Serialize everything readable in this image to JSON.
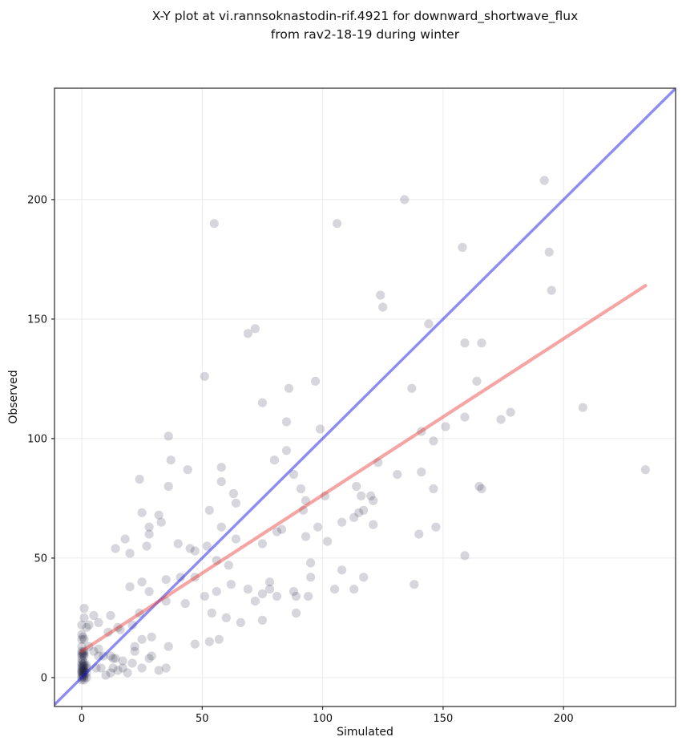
{
  "title": {
    "line1": "X-Y plot at vi.rannsoknastodin-rif.4921 for downward_shortwave_flux",
    "line2": "from rav2-18-19 during winter"
  },
  "chart_data": {
    "type": "scatter",
    "xlabel": "Simulated",
    "ylabel": "Observed",
    "x_ticks": [
      0,
      50,
      100,
      150,
      200
    ],
    "y_ticks": [
      0,
      50,
      100,
      150,
      200
    ],
    "xlim": [
      -11.3,
      246.5
    ],
    "ylim": [
      -12.1,
      246.6
    ],
    "grid": true,
    "grid_color": "#ebebeb",
    "spine_color": "#262626",
    "identity_line": {
      "slope": 1,
      "intercept": 0,
      "color": "#1919e6",
      "opacity": 0.5,
      "width": 3.4
    },
    "regression_line": {
      "x1": 0,
      "y1": 11,
      "x2": 234,
      "y2": 164,
      "color": "#e83732",
      "opacity": 0.45,
      "width": 4.2
    },
    "point_style": {
      "radius": 5.6,
      "color": "#1e1e3c",
      "opacity": 0.18
    },
    "points": [
      [
        55,
        190
      ],
      [
        106,
        190
      ],
      [
        134,
        200
      ],
      [
        158,
        180
      ],
      [
        124,
        160
      ],
      [
        125,
        155
      ],
      [
        192,
        208
      ],
      [
        194,
        178
      ],
      [
        195,
        162
      ],
      [
        69,
        144
      ],
      [
        72,
        146
      ],
      [
        51,
        126
      ],
      [
        75,
        115
      ],
      [
        36,
        101
      ],
      [
        37,
        91
      ],
      [
        44,
        87
      ],
      [
        24,
        83
      ],
      [
        36,
        80
      ],
      [
        58,
        88
      ],
      [
        58,
        82
      ],
      [
        63,
        77
      ],
      [
        144,
        148
      ],
      [
        159,
        140
      ],
      [
        166,
        140
      ],
      [
        164,
        124
      ],
      [
        178,
        111
      ],
      [
        174,
        108
      ],
      [
        208,
        113
      ],
      [
        234,
        87
      ],
      [
        165,
        80
      ],
      [
        166,
        79
      ],
      [
        97,
        124
      ],
      [
        86,
        121
      ],
      [
        137,
        121
      ],
      [
        85,
        107
      ],
      [
        99,
        104
      ],
      [
        159,
        109
      ],
      [
        151,
        105
      ],
      [
        141,
        103
      ],
      [
        146,
        99
      ],
      [
        85,
        95
      ],
      [
        80,
        91
      ],
      [
        123,
        90
      ],
      [
        88,
        85
      ],
      [
        131,
        85
      ],
      [
        141,
        86
      ],
      [
        91,
        79
      ],
      [
        114,
        80
      ],
      [
        146,
        79
      ],
      [
        101,
        76
      ],
      [
        116,
        76
      ],
      [
        120,
        76
      ],
      [
        121,
        74
      ],
      [
        93,
        74
      ],
      [
        92,
        70
      ],
      [
        117,
        70
      ],
      [
        81,
        61
      ],
      [
        83,
        62
      ],
      [
        75,
        56
      ],
      [
        93,
        59
      ],
      [
        98,
        63
      ],
      [
        102,
        57
      ],
      [
        108,
        65
      ],
      [
        113,
        67
      ],
      [
        115,
        69
      ],
      [
        121,
        64
      ],
      [
        140,
        60
      ],
      [
        147,
        63
      ],
      [
        159,
        51
      ],
      [
        95,
        48
      ],
      [
        108,
        45
      ],
      [
        95,
        42
      ],
      [
        117,
        42
      ],
      [
        78,
        40
      ],
      [
        78,
        37
      ],
      [
        75,
        35
      ],
      [
        81,
        34
      ],
      [
        88,
        36
      ],
      [
        89,
        34
      ],
      [
        94,
        34
      ],
      [
        105,
        37
      ],
      [
        113,
        37
      ],
      [
        138,
        39
      ],
      [
        89,
        27
      ],
      [
        75,
        24
      ],
      [
        25,
        69
      ],
      [
        32,
        68
      ],
      [
        28,
        63
      ],
      [
        33,
        65
      ],
      [
        28,
        60
      ],
      [
        53,
        70
      ],
      [
        58,
        63
      ],
      [
        64,
        73
      ],
      [
        64,
        58
      ],
      [
        18,
        58
      ],
      [
        14,
        54
      ],
      [
        20,
        52
      ],
      [
        27,
        55
      ],
      [
        40,
        56
      ],
      [
        45,
        54
      ],
      [
        47,
        53
      ],
      [
        52,
        55
      ],
      [
        56,
        49
      ],
      [
        61,
        47
      ],
      [
        24,
        27
      ],
      [
        25,
        40
      ],
      [
        20,
        38
      ],
      [
        28,
        36
      ],
      [
        35,
        41
      ],
      [
        41,
        42
      ],
      [
        47,
        42
      ],
      [
        35,
        32
      ],
      [
        43,
        31
      ],
      [
        51,
        34
      ],
      [
        56,
        36
      ],
      [
        62,
        39
      ],
      [
        69,
        37
      ],
      [
        72,
        32
      ],
      [
        54,
        27
      ],
      [
        60,
        25
      ],
      [
        66,
        23
      ],
      [
        36,
        13
      ],
      [
        47,
        14
      ],
      [
        53,
        15
      ],
      [
        57,
        16
      ],
      [
        22,
        11
      ],
      [
        29,
        9
      ],
      [
        28,
        8
      ],
      [
        25,
        4
      ],
      [
        32,
        3
      ],
      [
        35,
        4
      ],
      [
        13,
        8
      ],
      [
        17,
        7
      ],
      [
        21,
        6
      ],
      [
        19,
        2
      ],
      [
        22,
        13
      ],
      [
        25,
        16
      ],
      [
        29,
        17
      ],
      [
        21,
        22
      ],
      [
        15,
        21
      ],
      [
        16,
        20
      ],
      [
        11,
        19
      ],
      [
        12,
        26
      ],
      [
        5,
        26
      ],
      [
        7,
        23
      ],
      [
        3,
        22
      ],
      [
        2,
        21
      ],
      [
        1,
        29
      ],
      [
        1,
        25
      ],
      [
        0,
        22
      ],
      [
        0,
        18
      ],
      [
        0,
        16
      ],
      [
        1,
        16
      ],
      [
        0,
        13
      ],
      [
        3,
        13
      ],
      [
        7,
        12
      ],
      [
        5,
        11
      ],
      [
        12,
        9
      ],
      [
        14,
        8
      ],
      [
        9,
        9
      ],
      [
        7,
        9
      ],
      [
        6,
        4
      ],
      [
        8,
        4
      ],
      [
        13,
        4
      ],
      [
        15,
        3
      ],
      [
        17,
        4
      ],
      [
        10,
        1
      ],
      [
        12,
        2
      ],
      [
        0,
        9
      ],
      [
        0,
        10
      ],
      [
        0,
        11
      ],
      [
        1,
        9
      ],
      [
        1,
        10
      ],
      [
        1,
        11
      ],
      [
        0.5,
        9.5
      ],
      [
        0.5,
        10.5
      ],
      [
        0.5,
        17
      ],
      [
        0,
        0
      ],
      [
        0,
        1
      ],
      [
        0,
        2
      ],
      [
        0,
        3
      ],
      [
        0,
        4
      ],
      [
        0,
        5
      ],
      [
        0,
        6
      ],
      [
        1,
        0
      ],
      [
        1,
        1
      ],
      [
        1,
        2
      ],
      [
        1,
        3
      ],
      [
        1,
        4
      ],
      [
        1,
        5
      ],
      [
        1,
        6
      ],
      [
        2,
        2
      ],
      [
        2,
        4
      ],
      [
        2,
        0
      ],
      [
        0,
        -1
      ],
      [
        1,
        -1
      ],
      [
        0.5,
        0.5
      ],
      [
        0.5,
        1.5
      ],
      [
        0.5,
        2.5
      ],
      [
        0.5,
        3.5
      ],
      [
        0.5,
        4.5
      ],
      [
        0.5,
        5.5
      ],
      [
        0,
        2.5
      ],
      [
        1,
        2.5
      ],
      [
        0.5,
        7
      ],
      [
        0,
        7.5
      ],
      [
        2,
        5
      ]
    ]
  }
}
